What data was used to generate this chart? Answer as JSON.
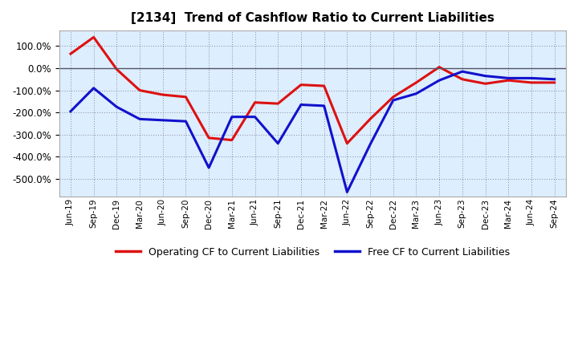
{
  "title": "[2134]  Trend of Cashflow Ratio to Current Liabilities",
  "x_labels": [
    "Jun-19",
    "Sep-19",
    "Dec-19",
    "Mar-20",
    "Jun-20",
    "Sep-20",
    "Dec-20",
    "Mar-21",
    "Jun-21",
    "Sep-21",
    "Dec-21",
    "Mar-22",
    "Jun-22",
    "Sep-22",
    "Dec-22",
    "Mar-23",
    "Jun-23",
    "Sep-23",
    "Dec-23",
    "Mar-24",
    "Jun-24",
    "Sep-24"
  ],
  "operating_cf": [
    65,
    140,
    -5,
    -100,
    -120,
    -130,
    -315,
    -325,
    -155,
    -160,
    -75,
    -80,
    -340,
    -230,
    -130,
    -65,
    5,
    -50,
    -70,
    -55,
    -65,
    -65
  ],
  "free_cf": [
    -195,
    -90,
    -175,
    -230,
    -235,
    -240,
    -450,
    -220,
    -220,
    -340,
    -165,
    -170,
    -560,
    -345,
    -145,
    -115,
    -55,
    -15,
    -35,
    -45,
    -45,
    -50
  ],
  "operating_color": "#dd1111",
  "free_color": "#1111cc",
  "ylim": [
    -580,
    170
  ],
  "yticks": [
    100,
    0,
    -100,
    -200,
    -300,
    -400,
    -500
  ],
  "background_color": "#ffffff",
  "plot_bg_color": "#dde8f0",
  "grid_color": "#888888",
  "legend_labels": [
    "Operating CF to Current Liabilities",
    "Free CF to Current Liabilities"
  ]
}
